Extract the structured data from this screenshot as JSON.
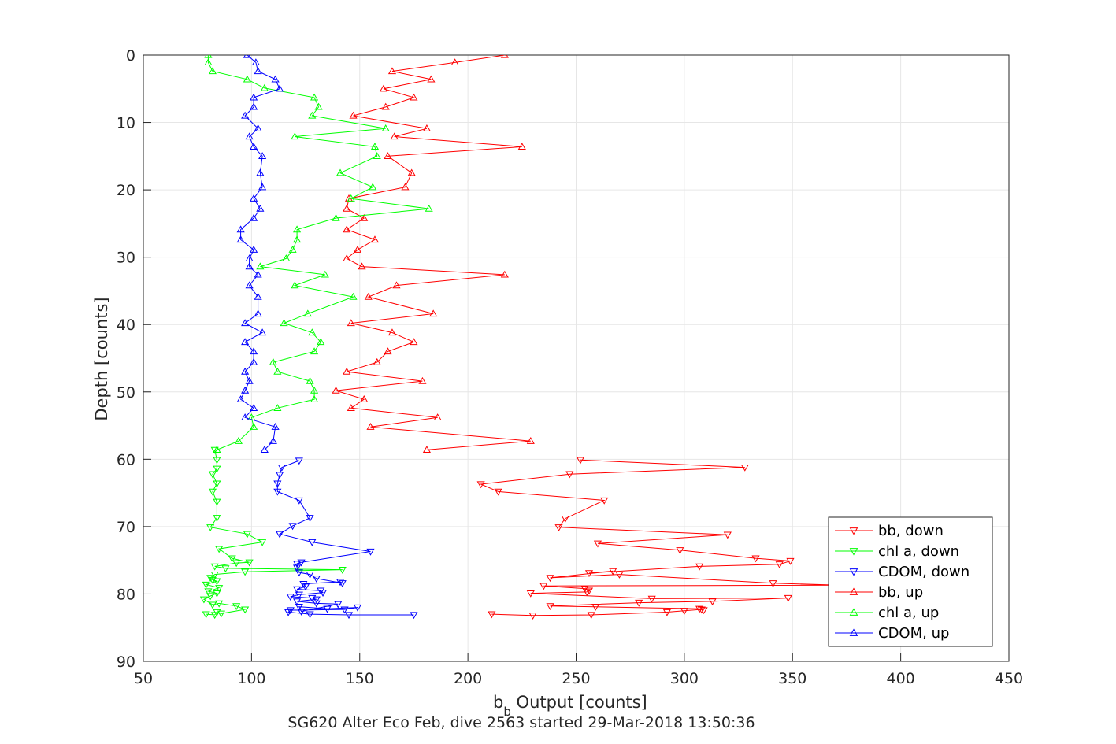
{
  "chart_data": {
    "type": "line",
    "title": "",
    "xlabel": "b",
    "xlabel_subscript": "b",
    "xlabel_rest": " Output [counts]",
    "ylabel": "Depth [counts]",
    "caption": "SG620 Alter Eco Feb, dive 2563 started 29-Mar-2018 13:50:36",
    "xlim": [
      50,
      450
    ],
    "ylim": [
      0,
      90
    ],
    "y_reversed": true,
    "xticks": [
      50,
      100,
      150,
      200,
      250,
      300,
      350,
      400,
      450
    ],
    "yticks": [
      0,
      10,
      20,
      30,
      40,
      50,
      60,
      70,
      80,
      90
    ],
    "grid": true,
    "legend_position": "bottom-right",
    "series": [
      {
        "name": "bb, down",
        "color": "#ff0000",
        "marker": "triangle-down",
        "points": [
          [
            211,
            83
          ],
          [
            230,
            83.2
          ],
          [
            257,
            83.1
          ],
          [
            292,
            82.7
          ],
          [
            300,
            82.5
          ],
          [
            308,
            82.3
          ],
          [
            309,
            82.4
          ],
          [
            307,
            82.2
          ],
          [
            259,
            81.9
          ],
          [
            238,
            81.8
          ],
          [
            279,
            81.3
          ],
          [
            313,
            81.1
          ],
          [
            348,
            80.6
          ],
          [
            285,
            80.7
          ],
          [
            229,
            79.9
          ],
          [
            255,
            79.7
          ],
          [
            256,
            79.5
          ],
          [
            254,
            79.2
          ],
          [
            235,
            78.8
          ],
          [
            372,
            78.7
          ],
          [
            341,
            78.4
          ],
          [
            270,
            77.1
          ],
          [
            238,
            77.6
          ],
          [
            267,
            76.6
          ],
          [
            256,
            76.9
          ],
          [
            307,
            75.9
          ],
          [
            344,
            75.6
          ],
          [
            349,
            75.1
          ],
          [
            333,
            74.7
          ],
          [
            298,
            73.5
          ],
          [
            260,
            72.5
          ],
          [
            320,
            71.2
          ],
          [
            242,
            70.1
          ],
          [
            245,
            68.8
          ],
          [
            263,
            66.1
          ],
          [
            214,
            64.8
          ],
          [
            206,
            63.7
          ],
          [
            247,
            62.2
          ],
          [
            328,
            61.2
          ],
          [
            252,
            60.1
          ]
        ]
      },
      {
        "name": "chl a, down",
        "color": "#00ff00",
        "marker": "triangle-down",
        "points": [
          [
            79,
            83
          ],
          [
            83,
            83.1
          ],
          [
            84,
            82.7
          ],
          [
            86,
            82.9
          ],
          [
            97,
            82.3
          ],
          [
            93,
            81.8
          ],
          [
            85,
            81.4
          ],
          [
            82,
            81.6
          ],
          [
            78,
            80.8
          ],
          [
            81,
            80.3
          ],
          [
            84,
            79.9
          ],
          [
            80,
            79.6
          ],
          [
            85,
            79.1
          ],
          [
            79,
            78.6
          ],
          [
            84,
            78.1
          ],
          [
            82,
            77.9
          ],
          [
            81,
            77.6
          ],
          [
            83,
            77.1
          ],
          [
            97,
            76.7
          ],
          [
            142,
            76.4
          ],
          [
            88,
            76.2
          ],
          [
            83,
            75.9
          ],
          [
            93,
            75.4
          ],
          [
            99,
            75.3
          ],
          [
            91,
            74.7
          ],
          [
            85,
            73.3
          ],
          [
            105,
            72.3
          ],
          [
            98,
            71.1
          ],
          [
            81,
            70.1
          ],
          [
            84,
            68.7
          ],
          [
            84,
            66.3
          ],
          [
            82,
            64.8
          ],
          [
            84,
            63.6
          ],
          [
            82,
            62.2
          ],
          [
            84,
            61.4
          ],
          [
            84,
            60.1
          ],
          [
            83,
            58.6
          ]
        ]
      },
      {
        "name": "CDOM, down",
        "color": "#0000ff",
        "marker": "triangle-down",
        "points": [
          [
            175,
            83.1
          ],
          [
            145,
            83.1
          ],
          [
            127,
            83
          ],
          [
            117,
            82.7
          ],
          [
            118,
            82.4
          ],
          [
            143,
            82.3
          ],
          [
            149,
            82
          ],
          [
            135,
            82.2
          ],
          [
            122,
            81.9
          ],
          [
            123,
            82.6
          ],
          [
            140,
            81.5
          ],
          [
            130,
            81.4
          ],
          [
            121,
            81.1
          ],
          [
            130,
            80.8
          ],
          [
            128,
            80.6
          ],
          [
            118,
            80.4
          ],
          [
            122,
            80.1
          ],
          [
            133,
            79.8
          ],
          [
            132,
            79.5
          ],
          [
            121,
            79.3
          ],
          [
            125,
            78.9
          ],
          [
            124,
            78.5
          ],
          [
            141,
            78.2
          ],
          [
            142,
            78.4
          ],
          [
            130,
            77.7
          ],
          [
            127,
            77.1
          ],
          [
            122,
            76.8
          ],
          [
            121,
            76.1
          ],
          [
            121,
            75.5
          ],
          [
            123,
            75.3
          ],
          [
            155,
            73.7
          ],
          [
            128,
            72.3
          ],
          [
            113,
            71.1
          ],
          [
            119,
            69.9
          ],
          [
            127,
            68.7
          ],
          [
            122,
            66.1
          ],
          [
            112,
            64.8
          ],
          [
            112,
            63.6
          ],
          [
            113,
            62.3
          ],
          [
            114,
            61.2
          ],
          [
            122,
            60.2
          ]
        ]
      },
      {
        "name": "bb, up",
        "color": "#ff0000",
        "marker": "triangle-up",
        "points": [
          [
            217,
            0
          ],
          [
            194,
            1.1
          ],
          [
            165,
            2.4
          ],
          [
            183,
            3.6
          ],
          [
            161,
            5
          ],
          [
            175,
            6.3
          ],
          [
            162,
            7.7
          ],
          [
            147,
            9
          ],
          [
            181,
            10.9
          ],
          [
            166,
            12.1
          ],
          [
            225,
            13.6
          ],
          [
            163,
            15
          ],
          [
            174,
            17.5
          ],
          [
            171,
            19.6
          ],
          [
            145,
            21.3
          ],
          [
            144,
            22.8
          ],
          [
            152,
            24.2
          ],
          [
            144,
            25.9
          ],
          [
            157,
            27.4
          ],
          [
            149,
            28.9
          ],
          [
            144,
            30.2
          ],
          [
            151,
            31.4
          ],
          [
            217,
            32.6
          ],
          [
            167,
            34.2
          ],
          [
            154,
            35.9
          ],
          [
            184,
            38.4
          ],
          [
            146,
            39.8
          ],
          [
            165,
            41.2
          ],
          [
            175,
            42.6
          ],
          [
            163,
            44
          ],
          [
            158,
            45.6
          ],
          [
            144,
            47
          ],
          [
            179,
            48.4
          ],
          [
            139,
            49.8
          ],
          [
            152,
            51.1
          ],
          [
            146,
            52.4
          ],
          [
            186,
            53.8
          ],
          [
            155,
            55.2
          ],
          [
            229,
            57.3
          ],
          [
            181,
            58.6
          ]
        ]
      },
      {
        "name": "chl a, up",
        "color": "#00ff00",
        "marker": "triangle-up",
        "points": [
          [
            80,
            0
          ],
          [
            80,
            1.1
          ],
          [
            82,
            2.4
          ],
          [
            98,
            3.6
          ],
          [
            106,
            4.9
          ],
          [
            129,
            6.3
          ],
          [
            131,
            7.7
          ],
          [
            128,
            9
          ],
          [
            162,
            10.9
          ],
          [
            120,
            12.1
          ],
          [
            157,
            13.6
          ],
          [
            158,
            15
          ],
          [
            141,
            17.5
          ],
          [
            156,
            19.6
          ],
          [
            146,
            21.3
          ],
          [
            182,
            22.8
          ],
          [
            139,
            24.2
          ],
          [
            121,
            25.9
          ],
          [
            121,
            27.4
          ],
          [
            119,
            28.9
          ],
          [
            116,
            30.2
          ],
          [
            104,
            31.4
          ],
          [
            134,
            32.6
          ],
          [
            120,
            34.2
          ],
          [
            147,
            35.9
          ],
          [
            126,
            38.4
          ],
          [
            115,
            39.8
          ],
          [
            128,
            41.2
          ],
          [
            132,
            42.6
          ],
          [
            129,
            44
          ],
          [
            110,
            45.6
          ],
          [
            112,
            47
          ],
          [
            127,
            48.4
          ],
          [
            129,
            49.8
          ],
          [
            129,
            51.1
          ],
          [
            112,
            52.4
          ],
          [
            100,
            53.8
          ],
          [
            101,
            55.2
          ],
          [
            94,
            57.3
          ],
          [
            84,
            58.6
          ]
        ]
      },
      {
        "name": "CDOM, up",
        "color": "#0000ff",
        "marker": "triangle-up",
        "points": [
          [
            98,
            0
          ],
          [
            102,
            1.1
          ],
          [
            103,
            2.4
          ],
          [
            111,
            3.6
          ],
          [
            113,
            5
          ],
          [
            101,
            6.3
          ],
          [
            101,
            7.7
          ],
          [
            97,
            9
          ],
          [
            103,
            10.9
          ],
          [
            99,
            12.1
          ],
          [
            101,
            13.6
          ],
          [
            105,
            15
          ],
          [
            104,
            17.5
          ],
          [
            105,
            19.6
          ],
          [
            101,
            21.3
          ],
          [
            104,
            22.8
          ],
          [
            101,
            24.2
          ],
          [
            95,
            25.9
          ],
          [
            95,
            27.4
          ],
          [
            101,
            28.9
          ],
          [
            99,
            30.2
          ],
          [
            99,
            31.4
          ],
          [
            103,
            32.6
          ],
          [
            99,
            34.2
          ],
          [
            103,
            35.9
          ],
          [
            103,
            38.4
          ],
          [
            97,
            39.8
          ],
          [
            105,
            41.2
          ],
          [
            97,
            42.6
          ],
          [
            101,
            44
          ],
          [
            101,
            45.6
          ],
          [
            97,
            47
          ],
          [
            99,
            48.4
          ],
          [
            97,
            49.8
          ],
          [
            95,
            51.1
          ],
          [
            101,
            52.4
          ],
          [
            97,
            53.8
          ],
          [
            111,
            55.2
          ],
          [
            110,
            57.3
          ],
          [
            106,
            58.6
          ]
        ]
      }
    ]
  }
}
